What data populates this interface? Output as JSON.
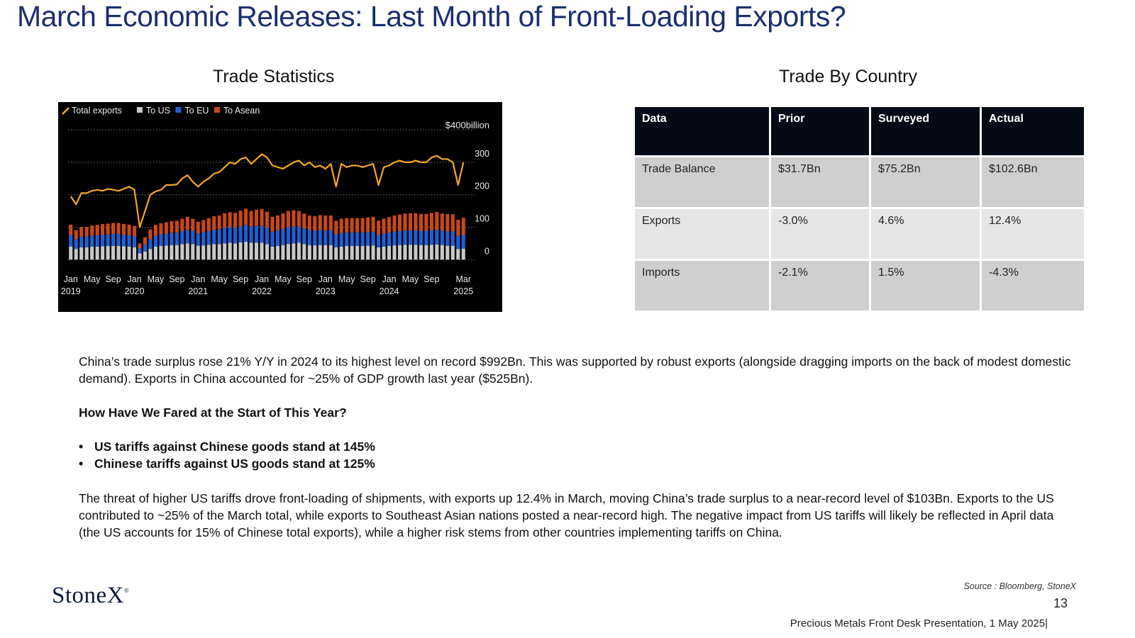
{
  "slide": {
    "title": "March Economic Releases: Last Month of Front-Loading Exports?",
    "chart_section_title": "Trade Statistics",
    "table_section_title": "Trade By Country"
  },
  "colors": {
    "title_blue": "#1b2f6e",
    "total_exports": "#f5a623",
    "to_us": "#c8c8c8",
    "to_eu": "#1f5fd6",
    "to_asean": "#c8481c",
    "chart_background": "#000000",
    "table_header": "#050b16"
  },
  "chart_data": {
    "type": "bar",
    "title": "",
    "unit_label": "$400billion",
    "legend": [
      "Total exports",
      "To US",
      "To EU",
      "To Asean"
    ],
    "legend_position": "top-left",
    "y_ticks": [
      0,
      100,
      200,
      300
    ],
    "ylim": [
      -30,
      420
    ],
    "grid": true,
    "x_tick_labels": [
      {
        "month": "Jan",
        "year": "2019",
        "index": 0
      },
      {
        "month": "May",
        "year": "",
        "index": 4
      },
      {
        "month": "Sep",
        "year": "",
        "index": 8
      },
      {
        "month": "Jan",
        "year": "2020",
        "index": 12
      },
      {
        "month": "May",
        "year": "",
        "index": 16
      },
      {
        "month": "Sep",
        "year": "",
        "index": 20
      },
      {
        "month": "Jan",
        "year": "2021",
        "index": 24
      },
      {
        "month": "May",
        "year": "",
        "index": 28
      },
      {
        "month": "Sep",
        "year": "",
        "index": 32
      },
      {
        "month": "Jan",
        "year": "2022",
        "index": 36
      },
      {
        "month": "May",
        "year": "",
        "index": 40
      },
      {
        "month": "Sep",
        "year": "",
        "index": 44
      },
      {
        "month": "Jan",
        "year": "2023",
        "index": 48
      },
      {
        "month": "May",
        "year": "",
        "index": 52
      },
      {
        "month": "Sep",
        "year": "",
        "index": 56
      },
      {
        "month": "Jan",
        "year": "2024",
        "index": 60
      },
      {
        "month": "May",
        "year": "",
        "index": 64
      },
      {
        "month": "Sep",
        "year": "",
        "index": 68
      },
      {
        "month": "Mar",
        "year": "2025",
        "index": 74
      }
    ],
    "series": [
      {
        "name": "Total exports",
        "type": "line",
        "values": [
          195,
          170,
          205,
          205,
          212,
          215,
          212,
          218,
          215,
          212,
          218,
          225,
          215,
          100,
          150,
          200,
          210,
          215,
          230,
          230,
          232,
          250,
          260,
          240,
          225,
          240,
          250,
          265,
          270,
          285,
          300,
          295,
          310,
          315,
          295,
          310,
          325,
          315,
          290,
          285,
          280,
          290,
          300,
          305,
          290,
          300,
          285,
          290,
          280,
          295,
          225,
          295,
          285,
          290,
          290,
          285,
          290,
          295,
          230,
          285,
          290,
          300,
          305,
          300,
          300,
          305,
          300,
          300,
          315,
          320,
          310,
          310,
          300,
          230,
          300
        ]
      },
      {
        "name": "To US",
        "type": "bar",
        "values": [
          40,
          33,
          38,
          38,
          40,
          40,
          41,
          42,
          42,
          42,
          41,
          40,
          38,
          20,
          25,
          33,
          40,
          42,
          43,
          45,
          45,
          48,
          50,
          48,
          43,
          44,
          46,
          48,
          48,
          50,
          52,
          50,
          53,
          55,
          52,
          52,
          52,
          48,
          40,
          42,
          45,
          48,
          50,
          52,
          48,
          45,
          44,
          45,
          45,
          45,
          38,
          40,
          42,
          42,
          42,
          42,
          43,
          44,
          38,
          40,
          42,
          44,
          45,
          46,
          46,
          46,
          45,
          45,
          46,
          47,
          45,
          43,
          43,
          33,
          34
        ]
      },
      {
        "name": "To EU",
        "type": "bar",
        "values": [
          35,
          30,
          33,
          33,
          34,
          35,
          36,
          36,
          37,
          37,
          36,
          35,
          34,
          15,
          22,
          30,
          34,
          36,
          37,
          38,
          38,
          40,
          42,
          40,
          38,
          40,
          42,
          44,
          45,
          48,
          48,
          48,
          50,
          52,
          50,
          52,
          52,
          50,
          46,
          48,
          50,
          52,
          52,
          50,
          48,
          46,
          45,
          46,
          45,
          45,
          40,
          42,
          42,
          42,
          42,
          42,
          42,
          42,
          38,
          40,
          41,
          42,
          43,
          44,
          44,
          44,
          44,
          44,
          45,
          45,
          44,
          44,
          44,
          40,
          42
        ]
      },
      {
        "name": "To Asean",
        "type": "bar",
        "values": [
          33,
          28,
          30,
          30,
          31,
          32,
          33,
          33,
          34,
          34,
          33,
          33,
          32,
          15,
          22,
          30,
          33,
          34,
          35,
          36,
          37,
          38,
          40,
          38,
          36,
          38,
          40,
          42,
          43,
          45,
          46,
          46,
          48,
          50,
          48,
          50,
          52,
          50,
          46,
          46,
          48,
          50,
          50,
          48,
          46,
          45,
          45,
          46,
          46,
          46,
          42,
          44,
          44,
          44,
          44,
          44,
          45,
          46,
          44,
          46,
          48,
          50,
          51,
          52,
          53,
          53,
          52,
          52,
          53,
          55,
          53,
          53,
          53,
          50,
          53
        ]
      }
    ]
  },
  "table": {
    "headers": [
      "Data",
      "Prior",
      "Surveyed",
      "Actual"
    ],
    "rows": [
      [
        "Trade Balance",
        "$31.7Bn",
        "$75.2Bn",
        "$102.6Bn"
      ],
      [
        "Exports",
        "-3.0%",
        "4.6%",
        "12.4%"
      ],
      [
        "Imports",
        "-2.1%",
        "1.5%",
        "-4.3%"
      ]
    ]
  },
  "body": {
    "paragraph1": "China’s trade surplus rose 21% Y/Y in 2024 to its highest level on record  $992Bn. This was supported by robust exports (alongside dragging imports on the back of modest domestic demand). Exports in China accounted for ~25% of GDP growth last year ($525Bn).",
    "heading": "How Have We Fared at the Start of This Year?",
    "bullets": [
      "US tariffs against Chinese goods stand at 145%",
      "Chinese tariffs against US goods stand at 125%"
    ],
    "paragraph2": "The threat of higher US tariffs drove front-loading of shipments, with exports up 12.4% in March, moving China’s trade surplus to a near-record level of $103Bn. Exports to the US contributed to ~25% of the March total, while exports to Southeast Asian nations posted a near-record high. The negative impact from US tariffs will likely be reflected in April data (the US accounts for 15% of Chinese total exports), while a higher risk stems from other countries implementing tariffs on China."
  },
  "footer": {
    "logo_text": "StoneX",
    "logo_mark": "®",
    "source": "Source : Bloomberg, StoneX",
    "page_number": "13",
    "presentation": "Precious Metals Front Desk Presentation, 1 May 2025|"
  }
}
